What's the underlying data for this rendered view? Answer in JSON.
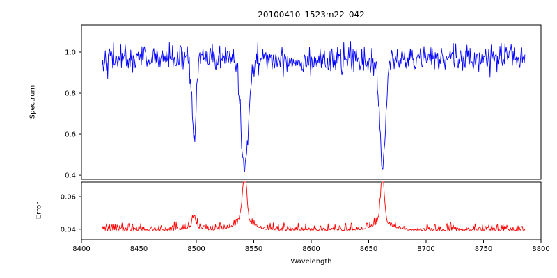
{
  "chart_data": {
    "type": "line",
    "title": "20100410_1523m22_042",
    "xlabel": "Wavelength",
    "grid": false,
    "legend": "none",
    "x_range": [
      8400,
      8800
    ],
    "x_ticks": [
      8400,
      8450,
      8500,
      8550,
      8600,
      8650,
      8700,
      8750,
      8800
    ],
    "x_data_range": [
      8418,
      8786
    ],
    "seed": 42,
    "subplots": [
      {
        "name": "spectrum",
        "ylabel": "Spectrum",
        "y_ticks": [
          {
            "v": 0.4,
            "label": "0.4"
          },
          {
            "v": 0.6,
            "label": "0.6"
          },
          {
            "v": 0.8,
            "label": "0.8"
          },
          {
            "v": 1.0,
            "label": "1.0"
          }
        ],
        "y_range": [
          0.38,
          1.132
        ],
        "color": "#0000ff",
        "continuum": 0.965,
        "noise_sigma": 0.032,
        "absorption_lines": [
          {
            "center": 8498,
            "min": 0.58,
            "width": 1.8
          },
          {
            "center": 8542,
            "min": 0.42,
            "width": 3.0
          },
          {
            "center": 8662,
            "min": 0.45,
            "width": 2.6
          }
        ]
      },
      {
        "name": "error",
        "ylabel": "Error",
        "y_ticks": [
          {
            "v": 0.04,
            "label": "0.04"
          },
          {
            "v": 0.06,
            "label": "0.06"
          }
        ],
        "y_range": [
          0.0335,
          0.069
        ],
        "color": "#ff0000",
        "baseline": 0.0392,
        "noise_sigma": 0.001,
        "peaks": [
          {
            "center": 8498,
            "max": 0.047,
            "width": 1.6
          },
          {
            "center": 8542,
            "max": 0.0705,
            "width": 1.8
          },
          {
            "center": 8662,
            "max": 0.066,
            "width": 1.8
          }
        ]
      }
    ]
  }
}
